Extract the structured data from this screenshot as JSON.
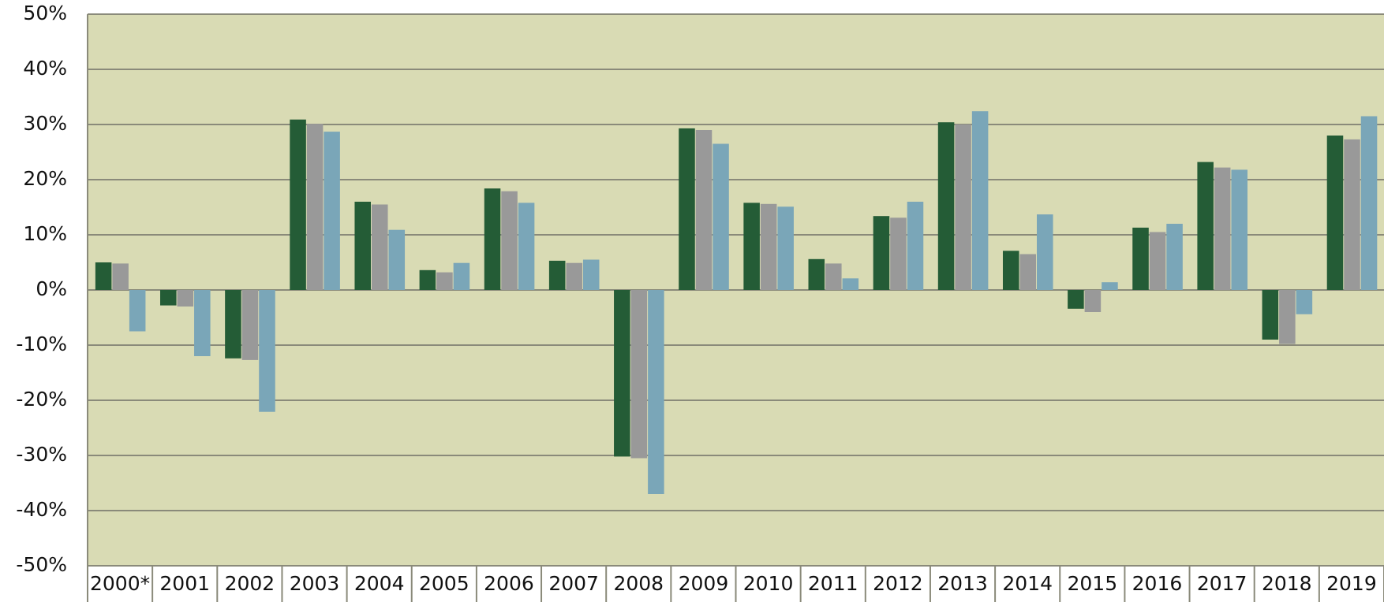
{
  "chart_data": {
    "type": "bar",
    "categories": [
      "2000*",
      "2001",
      "2002",
      "2003",
      "2004",
      "2005",
      "2006",
      "2007",
      "2008",
      "2009",
      "2010",
      "2011",
      "2012",
      "2013",
      "2014",
      "2015",
      "2016",
      "2017",
      "2018",
      "2019"
    ],
    "series": [
      {
        "color": "#245c36",
        "values": [
          5.0,
          -2.8,
          -12.4,
          30.9,
          16.0,
          3.6,
          18.4,
          5.3,
          -30.2,
          29.3,
          15.8,
          5.6,
          13.4,
          30.4,
          7.1,
          -3.4,
          11.3,
          23.2,
          -9.0,
          28.0
        ]
      },
      {
        "color": "#999999",
        "values": [
          4.8,
          -3.0,
          -12.7,
          30.1,
          15.5,
          3.2,
          17.9,
          4.9,
          -30.5,
          29.0,
          15.6,
          4.8,
          13.1,
          30.0,
          6.5,
          -4.0,
          10.5,
          22.2,
          -9.8,
          27.3
        ]
      },
      {
        "color": "#7aa6b8",
        "values": [
          -7.5,
          -12.0,
          -22.1,
          28.7,
          10.9,
          4.9,
          15.8,
          5.5,
          -37.0,
          26.5,
          15.1,
          2.1,
          16.0,
          32.4,
          13.7,
          1.4,
          12.0,
          21.8,
          -4.4,
          31.5
        ]
      }
    ],
    "ylim": [
      -50,
      50
    ],
    "yticks": [
      {
        "value": -50,
        "label": "-50%"
      },
      {
        "value": -40,
        "label": "-40%"
      },
      {
        "value": -30,
        "label": "-30%"
      },
      {
        "value": -20,
        "label": "-20%"
      },
      {
        "value": -10,
        "label": "-10%"
      },
      {
        "value": 0,
        "label": "0%"
      },
      {
        "value": 10,
        "label": "10%"
      },
      {
        "value": 20,
        "label": "20%"
      },
      {
        "value": 30,
        "label": "30%"
      },
      {
        "value": 40,
        "label": "40%"
      },
      {
        "value": 50,
        "label": "50%"
      }
    ],
    "grid": true,
    "background": "#d9dbb4"
  }
}
